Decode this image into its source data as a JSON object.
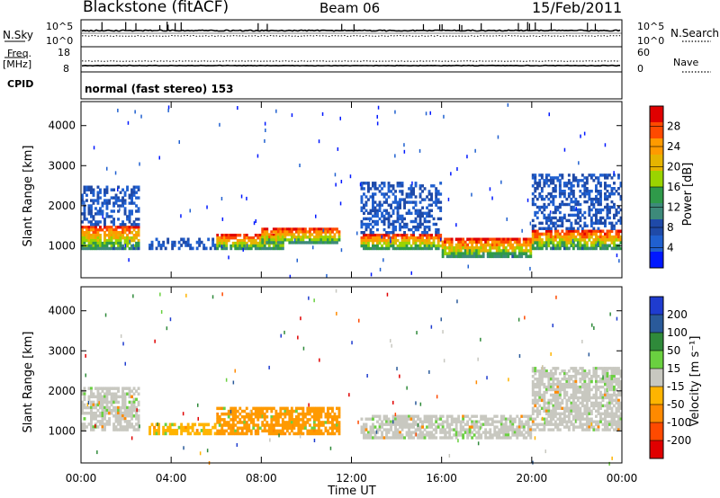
{
  "header": {
    "station": "Blackstone (fitACF)",
    "beam": "Beam 06",
    "date": "15/Feb/2011"
  },
  "strip_panels": {
    "nsky_label": "N.Sky",
    "nsky_ticks": [
      "10^5",
      "10^0"
    ],
    "nsearch_label": "N.Search",
    "nsearch_ticks": [
      "10^5",
      "10^0"
    ],
    "freq_label": "Freq.",
    "freq_unit": "[MHz]",
    "freq_ticks": [
      "18",
      "8"
    ],
    "nave_label": "Nave",
    "nave_ticks": [
      "60",
      "0"
    ],
    "cpid_label": "CPID",
    "cpid_value": "normal (fast stereo) 153"
  },
  "colorbars": {
    "power": {
      "label": "Power [dB]",
      "ticks": [
        "28",
        "24",
        "20",
        "16",
        "12",
        "8",
        "4"
      ],
      "colors": [
        "#e00000",
        "#ff4a00",
        "#ff9a00",
        "#e6b400",
        "#9ad400",
        "#2f9a4a",
        "#3d8a7a",
        "#1f4aa8",
        "#2060d0",
        "#0018ff"
      ]
    },
    "velocity": {
      "label": "Velocity [m s⁻¹]",
      "ticks": [
        "200",
        "100",
        "50",
        "15",
        "-15",
        "-50",
        "-100",
        "-200"
      ],
      "colors": [
        "#1f3ccf",
        "#2a5a9a",
        "#2f8a3a",
        "#6ad040",
        "#c8c8c0",
        "#ffb400",
        "#ff8a00",
        "#ff4a00",
        "#e00000"
      ]
    }
  },
  "chart_data": [
    {
      "type": "heatmap",
      "name": "power",
      "ylabel": "Slant Range [km]",
      "xlim": [
        0,
        24
      ],
      "ylim": [
        200,
        4600
      ],
      "y_ticks": [
        "1000",
        "2000",
        "3000",
        "4000"
      ],
      "x_ticks": [
        "00:00",
        "04:00",
        "08:00",
        "12:00",
        "16:00",
        "20:00",
        "00:00"
      ],
      "bands": [
        {
          "t0": 0.0,
          "t1": 2.6,
          "r_lo": 900,
          "r_hi": 1500,
          "level": "high"
        },
        {
          "t0": 0.0,
          "t1": 2.6,
          "r_lo": 1500,
          "r_hi": 2500,
          "level": "low"
        },
        {
          "t0": 3.0,
          "t1": 6.0,
          "r_lo": 900,
          "r_hi": 1200,
          "level": "low"
        },
        {
          "t0": 6.0,
          "t1": 9.0,
          "r_lo": 900,
          "r_hi": 1300,
          "level": "high"
        },
        {
          "t0": 8.0,
          "t1": 11.5,
          "r_lo": 1050,
          "r_hi": 1450,
          "level": "high"
        },
        {
          "t0": 12.4,
          "t1": 16.0,
          "r_lo": 900,
          "r_hi": 1300,
          "level": "high"
        },
        {
          "t0": 12.4,
          "t1": 16.0,
          "r_lo": 1300,
          "r_hi": 2600,
          "level": "low"
        },
        {
          "t0": 16.0,
          "t1": 20.0,
          "r_lo": 700,
          "r_hi": 1200,
          "level": "high"
        },
        {
          "t0": 20.0,
          "t1": 24.0,
          "r_lo": 900,
          "r_hi": 1400,
          "level": "high"
        },
        {
          "t0": 20.0,
          "t1": 24.0,
          "r_lo": 1400,
          "r_hi": 2800,
          "level": "low"
        }
      ]
    },
    {
      "type": "heatmap",
      "name": "velocity",
      "xlabel": "Time UT",
      "ylabel": "Slant Range [km]",
      "xlim": [
        0,
        24
      ],
      "ylim": [
        200,
        4600
      ],
      "y_ticks": [
        "1000",
        "2000",
        "3000",
        "4000"
      ],
      "x_ticks": [
        "00:00",
        "04:00",
        "08:00",
        "12:00",
        "16:00",
        "20:00",
        "00:00"
      ],
      "bands": [
        {
          "t0": 0.0,
          "t1": 2.6,
          "r_lo": 1000,
          "r_hi": 2100,
          "velocity": "-15..15"
        },
        {
          "t0": 3.0,
          "t1": 6.0,
          "r_lo": 900,
          "r_hi": 1200,
          "velocity": "-50..-15"
        },
        {
          "t0": 6.0,
          "t1": 11.5,
          "r_lo": 900,
          "r_hi": 1600,
          "velocity": "-100..-50"
        },
        {
          "t0": 12.4,
          "t1": 20.0,
          "r_lo": 800,
          "r_hi": 1400,
          "velocity": "-15..15"
        },
        {
          "t0": 20.0,
          "t1": 24.0,
          "r_lo": 1000,
          "r_hi": 2600,
          "velocity": "-15..15"
        }
      ]
    }
  ]
}
